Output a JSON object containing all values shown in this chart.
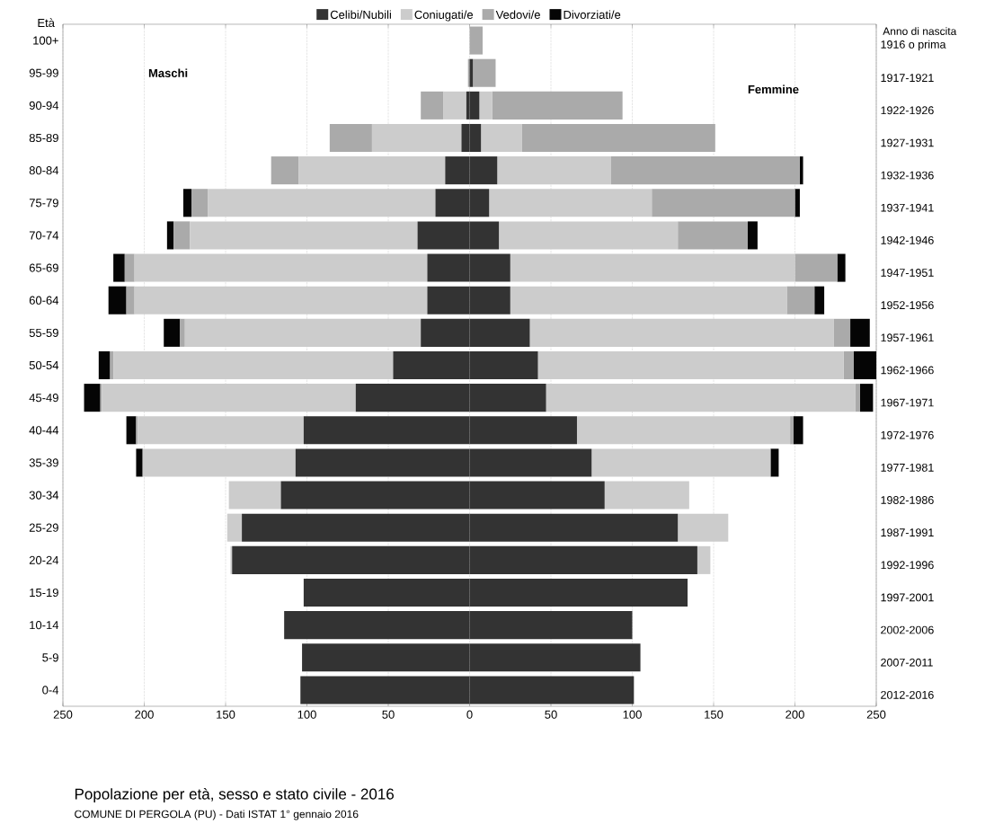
{
  "chart_data": {
    "type": "bar",
    "orientation": "horizontal",
    "stacked": true,
    "title": "Popolazione per età, sesso e stato civile - 2016",
    "ylabel": "Età",
    "y2label": "Anno di nascita",
    "annotations": [
      "Maschi",
      "Femmine",
      "COMUNE DI PERGOLA (PU) - Dati ISTAT 1° gennaio 2016"
    ],
    "categories": [
      "100+",
      "95-99",
      "90-94",
      "85-89",
      "80-84",
      "75-79",
      "70-74",
      "65-69",
      "60-64",
      "55-59",
      "50-54",
      "45-49",
      "40-44",
      "35-39",
      "30-34",
      "25-29",
      "20-24",
      "15-19",
      "10-14",
      "5-9",
      "0-4"
    ],
    "y2_categories": [
      "1916 o prima",
      "1917-1921",
      "1922-1926",
      "1927-1931",
      "1932-1936",
      "1937-1941",
      "1942-1946",
      "1947-1951",
      "1952-1956",
      "1957-1961",
      "1962-1966",
      "1967-1971",
      "1972-1976",
      "1977-1981",
      "1982-1986",
      "1987-1991",
      "1992-1996",
      "1997-2001",
      "2002-2006",
      "2007-2011",
      "2012-2016"
    ],
    "xlim": [
      -250,
      250
    ],
    "xticks": [
      {
        "value": -250,
        "label": "250"
      },
      {
        "value": -200,
        "label": "200"
      },
      {
        "value": -150,
        "label": "150"
      },
      {
        "value": -100,
        "label": "100"
      },
      {
        "value": -50,
        "label": "50"
      },
      0,
      50,
      100,
      150,
      200,
      250
    ],
    "grid": "x",
    "legend": "top",
    "series": [
      {
        "name": "Celibi/Nubili",
        "color": "#333333",
        "values": [
          0,
          0,
          -2,
          -5,
          -15,
          -21,
          -32,
          -26,
          -26,
          -30,
          -47,
          -70,
          -102,
          -107,
          -116,
          -140,
          -146,
          -102,
          -114,
          -103,
          -104
        ]
      },
      {
        "name": "Coniugati/e",
        "color": "#cccccc",
        "values": [
          0,
          0,
          -14,
          -55,
          -90,
          -140,
          -140,
          -180,
          -180,
          -145,
          -172,
          -156,
          -102,
          -94,
          -32,
          -9,
          -1,
          0,
          0,
          0,
          0
        ]
      },
      {
        "name": "Vedovi/e",
        "color": "#aaaaaa",
        "values": [
          0,
          -1,
          -14,
          -26,
          -17,
          -10,
          -10,
          -6,
          -5,
          -3,
          -2,
          -1,
          -1,
          0,
          0,
          0,
          0,
          0,
          0,
          0,
          0
        ]
      },
      {
        "name": "Divorziati/e",
        "color": "#050505",
        "values": [
          0,
          0,
          0,
          0,
          0,
          -5,
          -4,
          -7,
          -11,
          -10,
          -7,
          -10,
          -6,
          -4,
          0,
          0,
          0,
          0,
          0,
          0,
          0
        ]
      },
      {
        "color": "#333333",
        "values": [
          0,
          2,
          6,
          7,
          17,
          12,
          18,
          25,
          25,
          37,
          42,
          47,
          66,
          75,
          83,
          128,
          140,
          134,
          100,
          105,
          101
        ]
      },
      {
        "color": "#cccccc",
        "values": [
          0,
          0,
          8,
          25,
          70,
          100,
          110,
          175,
          170,
          187,
          188,
          190,
          131,
          110,
          52,
          31,
          8,
          0,
          0,
          0,
          0
        ]
      },
      {
        "color": "#aaaaaa",
        "values": [
          8,
          14,
          80,
          119,
          116,
          88,
          43,
          26,
          17,
          10,
          6,
          3,
          2,
          0,
          0,
          0,
          0,
          0,
          0,
          0,
          0
        ]
      },
      {
        "color": "#050505",
        "values": [
          0,
          0,
          0,
          0,
          2,
          3,
          6,
          5,
          6,
          12,
          14,
          8,
          6,
          5,
          0,
          0,
          0,
          0,
          0,
          0,
          0
        ]
      }
    ]
  }
}
